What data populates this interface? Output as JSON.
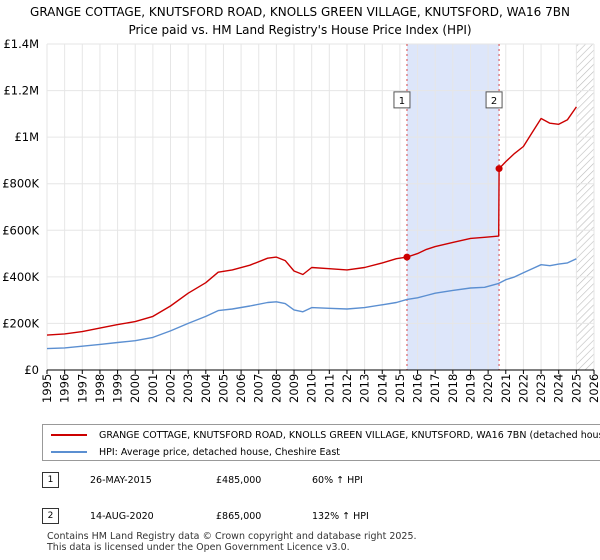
{
  "title_line1": "GRANGE COTTAGE, KNUTSFORD ROAD, KNOLLS GREEN VILLAGE, KNUTSFORD, WA16 7BN",
  "title_line2": "Price paid vs. HM Land Registry's House Price Index (HPI)",
  "chart_data": {
    "type": "line",
    "title": "Price paid vs. HM Land Registry's House Price Index (HPI)",
    "xlabel": "",
    "ylabel": "",
    "xlim": [
      1995,
      2026
    ],
    "ylim": [
      0,
      1400000
    ],
    "x_ticks": [
      "1995",
      "1996",
      "1997",
      "1998",
      "1999",
      "2000",
      "2001",
      "2002",
      "2003",
      "2004",
      "2005",
      "2006",
      "2007",
      "2008",
      "2009",
      "2010",
      "2011",
      "2012",
      "2013",
      "2014",
      "2015",
      "2016",
      "2017",
      "2018",
      "2019",
      "2020",
      "2021",
      "2022",
      "2023",
      "2024",
      "2025",
      "2026"
    ],
    "y_ticks": [
      {
        "value": 0,
        "label": "£0"
      },
      {
        "value": 200000,
        "label": "£200K"
      },
      {
        "value": 400000,
        "label": "£400K"
      },
      {
        "value": 600000,
        "label": "£600K"
      },
      {
        "value": 800000,
        "label": "£800K"
      },
      {
        "value": 1000000,
        "label": "£1M"
      },
      {
        "value": 1200000,
        "label": "£1.2M"
      },
      {
        "value": 1400000,
        "label": "£1.4M"
      }
    ],
    "grid": true,
    "shaded_period": {
      "start": 2015.4,
      "end": 2020.62,
      "color": "#dde6fa"
    },
    "hatched_future": {
      "start": 2025.0,
      "end": 2026
    },
    "series": [
      {
        "name": "GRANGE COTTAGE, KNUTSFORD ROAD, KNOLLS GREEN VILLAGE, KNUTSFORD, WA16 7BN (detached house)",
        "color": "#cc0000",
        "points": [
          [
            1995.0,
            150000
          ],
          [
            1996.0,
            155000
          ],
          [
            1997.0,
            165000
          ],
          [
            1998.0,
            180000
          ],
          [
            1999.0,
            195000
          ],
          [
            2000.0,
            208000
          ],
          [
            2001.0,
            230000
          ],
          [
            2002.0,
            275000
          ],
          [
            2003.0,
            330000
          ],
          [
            2004.0,
            375000
          ],
          [
            2004.7,
            420000
          ],
          [
            2005.5,
            430000
          ],
          [
            2006.5,
            450000
          ],
          [
            2007.5,
            480000
          ],
          [
            2008.0,
            485000
          ],
          [
            2008.5,
            470000
          ],
          [
            2009.0,
            425000
          ],
          [
            2009.5,
            410000
          ],
          [
            2010.0,
            440000
          ],
          [
            2011.0,
            435000
          ],
          [
            2012.0,
            430000
          ],
          [
            2013.0,
            440000
          ],
          [
            2014.0,
            460000
          ],
          [
            2014.8,
            478000
          ],
          [
            2015.4,
            485000
          ],
          [
            2016.0,
            500000
          ],
          [
            2016.5,
            518000
          ],
          [
            2017.0,
            530000
          ],
          [
            2018.0,
            548000
          ],
          [
            2019.0,
            565000
          ],
          [
            2019.8,
            570000
          ],
          [
            2020.6,
            575000
          ],
          [
            2020.62,
            865000
          ],
          [
            2021.0,
            895000
          ],
          [
            2021.5,
            930000
          ],
          [
            2022.0,
            960000
          ],
          [
            2022.5,
            1020000
          ],
          [
            2023.0,
            1080000
          ],
          [
            2023.5,
            1060000
          ],
          [
            2024.0,
            1055000
          ],
          [
            2024.5,
            1075000
          ],
          [
            2025.0,
            1130000
          ]
        ]
      },
      {
        "name": "HPI: Average price, detached house, Cheshire East",
        "color": "#5b8fd1",
        "points": [
          [
            1995.0,
            92000
          ],
          [
            1996.0,
            95000
          ],
          [
            1997.0,
            102000
          ],
          [
            1998.0,
            110000
          ],
          [
            1999.0,
            118000
          ],
          [
            2000.0,
            126000
          ],
          [
            2001.0,
            140000
          ],
          [
            2002.0,
            168000
          ],
          [
            2003.0,
            200000
          ],
          [
            2004.0,
            230000
          ],
          [
            2004.7,
            255000
          ],
          [
            2005.5,
            262000
          ],
          [
            2006.5,
            275000
          ],
          [
            2007.5,
            290000
          ],
          [
            2008.0,
            293000
          ],
          [
            2008.5,
            285000
          ],
          [
            2009.0,
            258000
          ],
          [
            2009.5,
            250000
          ],
          [
            2010.0,
            268000
          ],
          [
            2011.0,
            265000
          ],
          [
            2012.0,
            262000
          ],
          [
            2013.0,
            268000
          ],
          [
            2014.0,
            280000
          ],
          [
            2014.8,
            290000
          ],
          [
            2015.4,
            303000
          ],
          [
            2016.0,
            310000
          ],
          [
            2016.5,
            320000
          ],
          [
            2017.0,
            330000
          ],
          [
            2018.0,
            342000
          ],
          [
            2019.0,
            352000
          ],
          [
            2019.8,
            355000
          ],
          [
            2020.6,
            372000
          ],
          [
            2021.0,
            388000
          ],
          [
            2021.5,
            400000
          ],
          [
            2022.0,
            418000
          ],
          [
            2022.5,
            435000
          ],
          [
            2023.0,
            452000
          ],
          [
            2023.5,
            448000
          ],
          [
            2024.0,
            455000
          ],
          [
            2024.5,
            460000
          ],
          [
            2025.0,
            478000
          ]
        ]
      }
    ],
    "sale_markers": [
      {
        "label": "1",
        "x": 2015.4,
        "y": 485000,
        "box_y": 1160000
      },
      {
        "label": "2",
        "x": 2020.62,
        "y": 865000,
        "box_y": 1160000
      }
    ]
  },
  "legend": {
    "red_label": "GRANGE COTTAGE, KNUTSFORD ROAD, KNOLLS GREEN VILLAGE, KNUTSFORD, WA16 7BN (detached house)",
    "blue_label": "HPI: Average price, detached house, Cheshire East"
  },
  "sales": [
    {
      "num": "1",
      "date": "26-MAY-2015",
      "price": "£485,000",
      "hpi": "60% ↑ HPI"
    },
    {
      "num": "2",
      "date": "14-AUG-2020",
      "price": "£865,000",
      "hpi": "132% ↑ HPI"
    }
  ],
  "footer_line1": "Contains HM Land Registry data © Crown copyright and database right 2025.",
  "footer_line2": "This data is licensed under the Open Government Licence v3.0."
}
